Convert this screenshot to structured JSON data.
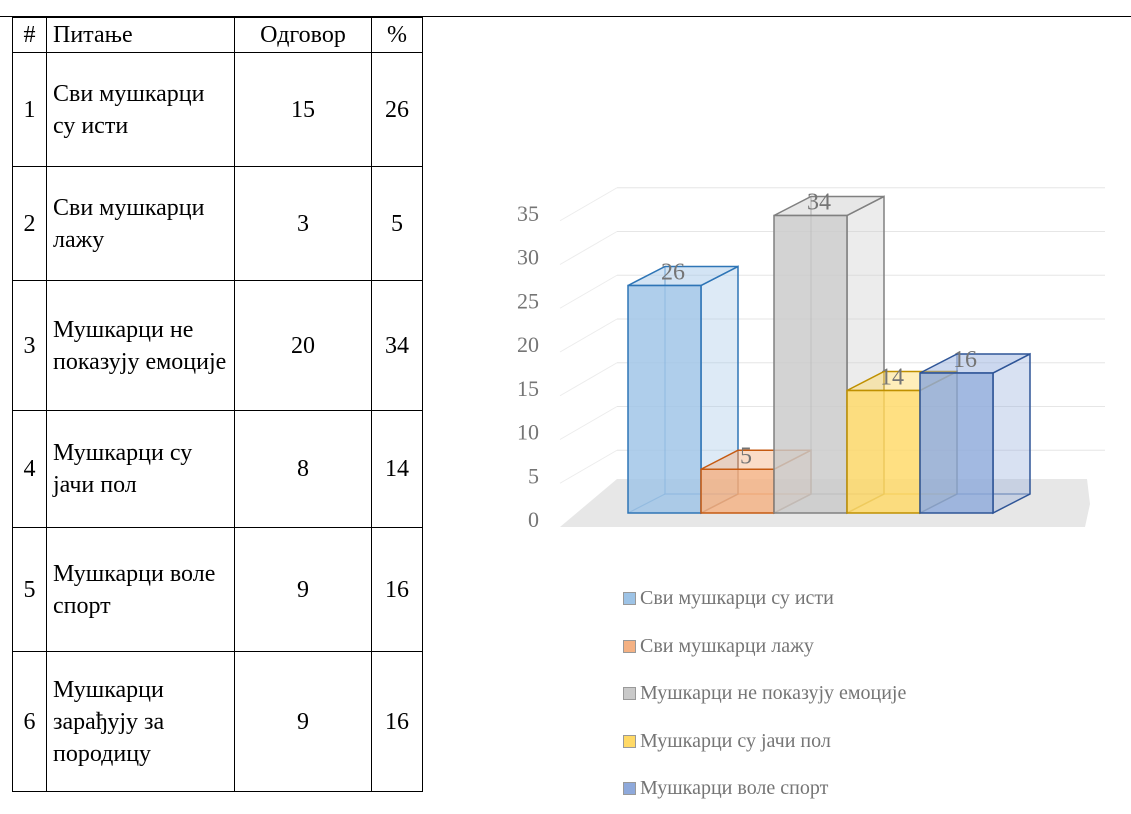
{
  "table": {
    "headers": [
      "#",
      "Питање",
      "Одговор",
      "%"
    ],
    "rows": [
      {
        "num": "1",
        "question": "Сви мушкарци су исти",
        "answer": "15",
        "percent": "26"
      },
      {
        "num": "2",
        "question": "Сви мушкарци лажу",
        "answer": "3",
        "percent": "5"
      },
      {
        "num": "3",
        "question": "Мушкарци не показују емоције",
        "answer": "20",
        "percent": "34"
      },
      {
        "num": "4",
        "question": "Мушкарци су јачи пол",
        "answer": "8",
        "percent": "14"
      },
      {
        "num": "5",
        "question": "Мушкарци воле спорт",
        "answer": "9",
        "percent": "16"
      },
      {
        "num": "6",
        "question": "Мушкарци зарађују за породицу",
        "answer": "9",
        "percent": "16"
      }
    ]
  },
  "chart_data": {
    "type": "bar",
    "title": "",
    "xlabel": "",
    "ylabel": "",
    "ylim": [
      0,
      35
    ],
    "yticks": [
      0,
      5,
      10,
      15,
      20,
      25,
      30,
      35
    ],
    "grid": true,
    "legend_position": "bottom",
    "style": "3d-column",
    "series": [
      {
        "name": "Сви мушкарци су исти",
        "value": 26,
        "color": "#9DC3E6",
        "edge": "#2E75B6"
      },
      {
        "name": "Сви мушкарци лажу",
        "value": 5,
        "color": "#F4B183",
        "edge": "#C55A11"
      },
      {
        "name": "Мушкарци не показују емоције",
        "value": 34,
        "color": "#C9C9C9",
        "edge": "#808080"
      },
      {
        "name": "Мушкарци су јачи пол",
        "value": 14,
        "color": "#FFD966",
        "edge": "#BF9000"
      },
      {
        "name": "Мушкарци воле спорт",
        "value": 16,
        "color": "#8EA9DB",
        "edge": "#2F5597"
      }
    ]
  }
}
